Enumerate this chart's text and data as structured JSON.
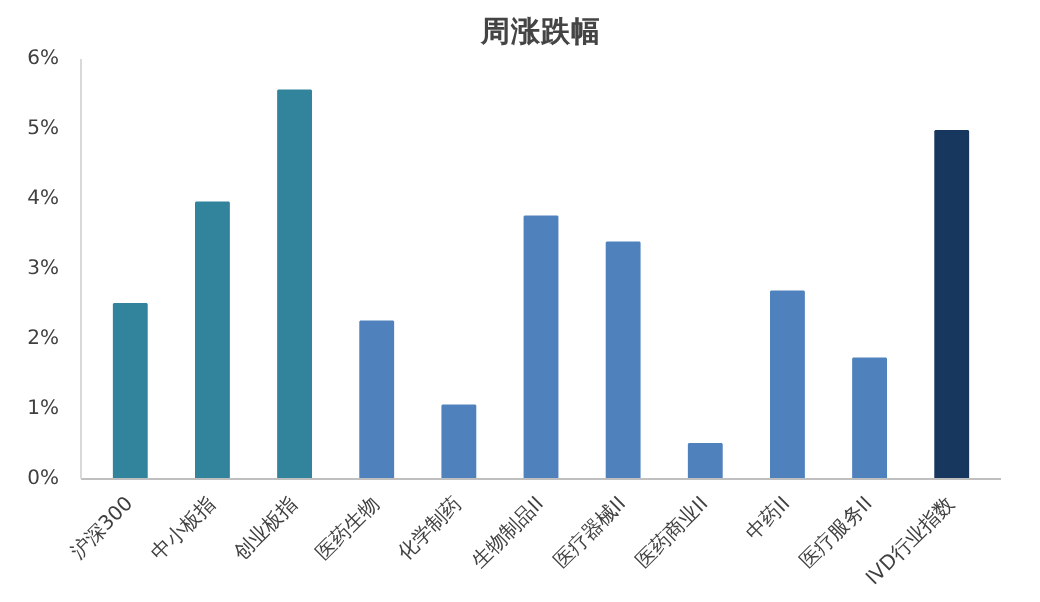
{
  "chart_data": {
    "type": "bar",
    "title": "周涨跌幅",
    "categories": [
      "沪深300",
      "中小板指",
      "创业板指",
      "医药生物",
      "化学制药",
      "生物制品II",
      "医疗器械II",
      "医药商业II",
      "中药II",
      "医疗服务II",
      "IVD行业指数"
    ],
    "values": [
      2.5,
      3.95,
      5.55,
      2.25,
      1.05,
      3.75,
      3.38,
      0.5,
      2.68,
      1.72,
      4.97
    ],
    "colors": [
      "#31849b",
      "#31849b",
      "#31849b",
      "#4f81bd",
      "#4f81bd",
      "#4f81bd",
      "#4f81bd",
      "#4f81bd",
      "#4f81bd",
      "#4f81bd",
      "#17375e"
    ],
    "ylim": [
      0,
      6
    ],
    "yticks": [
      {
        "value": 0,
        "label": "0%"
      },
      {
        "value": 1,
        "label": "1%"
      },
      {
        "value": 2,
        "label": "2%"
      },
      {
        "value": 3,
        "label": "3%"
      },
      {
        "value": 4,
        "label": "4%"
      },
      {
        "value": 5,
        "label": "5%"
      },
      {
        "value": 6,
        "label": "6%"
      }
    ],
    "grid": false
  }
}
